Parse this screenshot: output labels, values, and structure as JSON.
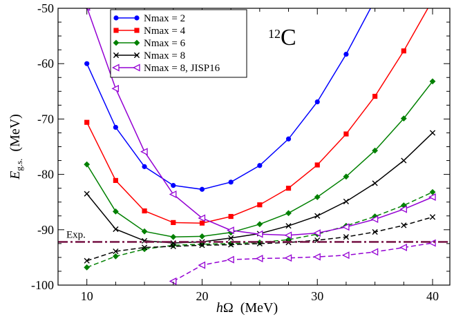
{
  "chart_data": {
    "type": "line",
    "title": "",
    "annotation": {
      "mass_number": "12",
      "element": "C"
    },
    "xlabel": {
      "prefix": "h",
      "symbol": "Ω",
      "rest": "  (MeV)"
    },
    "ylabel": {
      "symbol": "E",
      "subscript": "g.s.",
      "rest": "  (MeV)"
    },
    "xlim": [
      7.5,
      41.5
    ],
    "ylim": [
      -100,
      -50
    ],
    "xticks": [
      10,
      20,
      30,
      40
    ],
    "yticks": [
      -100,
      -90,
      -80,
      -70,
      -60,
      -50
    ],
    "grid": false,
    "legend_position": "top-left",
    "reference_line": {
      "label": "Exp.",
      "y": -92.2,
      "color": "#7a1a4a"
    },
    "series": [
      {
        "name": "Nmax = 2",
        "color": "#0000ff",
        "marker": "circle",
        "dashed": false,
        "in_legend": true,
        "x": [
          10,
          12.5,
          15,
          17.5,
          20,
          22.5,
          25,
          27.5,
          30,
          32.5,
          35
        ],
        "y": [
          -60.0,
          -71.5,
          -78.6,
          -82.0,
          -82.7,
          -81.4,
          -78.4,
          -73.6,
          -66.9,
          -58.3,
          -48.5
        ]
      },
      {
        "name": "Nmax = 4",
        "color": "#ff0000",
        "marker": "square",
        "dashed": false,
        "in_legend": true,
        "x": [
          10,
          12.5,
          15,
          17.5,
          20,
          22.5,
          25,
          27.5,
          30,
          32.5,
          35,
          37.5,
          40
        ],
        "y": [
          -70.6,
          -81.1,
          -86.6,
          -88.7,
          -88.8,
          -87.6,
          -85.5,
          -82.5,
          -78.3,
          -72.7,
          -65.9,
          -57.7,
          -48.5
        ]
      },
      {
        "name": "Nmax = 6",
        "color": "#008000",
        "marker": "diamond",
        "dashed": false,
        "in_legend": true,
        "x": [
          10,
          12.5,
          15,
          17.5,
          20,
          22.5,
          25,
          27.5,
          30,
          32.5,
          35,
          37.5,
          40
        ],
        "y": [
          -78.2,
          -86.7,
          -90.3,
          -91.3,
          -91.2,
          -90.5,
          -89.0,
          -87.0,
          -84.1,
          -80.4,
          -75.7,
          -69.9,
          -63.2
        ]
      },
      {
        "name": "Nmax = 8",
        "color": "#000000",
        "marker": "x",
        "dashed": false,
        "in_legend": true,
        "x": [
          10,
          12.5,
          15,
          17.5,
          20,
          22.5,
          25,
          27.5,
          30,
          32.5,
          35,
          37.5,
          40
        ],
        "y": [
          -83.5,
          -89.9,
          -92.0,
          -92.4,
          -92.2,
          -91.5,
          -90.7,
          -89.3,
          -87.5,
          -84.9,
          -81.6,
          -77.5,
          -72.5
        ]
      },
      {
        "name": "Nmax = 8, JISP16",
        "color": "#9400d3",
        "marker": "triangle-left",
        "dashed": false,
        "in_legend": true,
        "x": [
          10,
          12.5,
          15,
          17.5,
          20,
          22.5,
          25,
          27.5,
          30,
          32.5,
          35,
          37.5,
          40
        ],
        "y": [
          -49.8,
          -64.5,
          -75.9,
          -83.6,
          -87.9,
          -90.1,
          -90.8,
          -91.0,
          -90.6,
          -89.5,
          -88.1,
          -86.3,
          -84.1
        ]
      },
      {
        "name": "",
        "color": "#008000",
        "marker": "diamond",
        "dashed": true,
        "in_legend": false,
        "x": [
          10,
          12.5,
          15,
          17.5,
          20,
          22.5,
          25,
          27.5,
          30,
          32.5,
          35,
          37.5,
          40
        ],
        "y": [
          -96.8,
          -94.8,
          -93.5,
          -92.8,
          -92.6,
          -92.5,
          -92.3,
          -91.8,
          -90.8,
          -89.3,
          -87.6,
          -85.6,
          -83.2
        ]
      },
      {
        "name": "",
        "color": "#000000",
        "marker": "x",
        "dashed": true,
        "in_legend": false,
        "x": [
          10,
          12.5,
          15,
          17.5,
          20,
          22.5,
          25,
          27.5,
          30,
          32.5,
          35,
          37.5,
          40
        ],
        "y": [
          -95.6,
          -93.9,
          -93.2,
          -93.0,
          -92.8,
          -92.7,
          -92.5,
          -92.3,
          -91.9,
          -91.3,
          -90.4,
          -89.2,
          -87.7
        ]
      },
      {
        "name": "",
        "color": "#9400d3",
        "marker": "triangle-left",
        "dashed": true,
        "in_legend": false,
        "x": [
          17.5,
          20,
          22.5,
          25,
          27.5,
          30,
          32.5,
          35,
          37.5,
          40
        ],
        "y": [
          -99.3,
          -96.4,
          -95.4,
          -95.2,
          -95.1,
          -94.9,
          -94.6,
          -94.0,
          -93.2,
          -92.4
        ]
      }
    ]
  }
}
